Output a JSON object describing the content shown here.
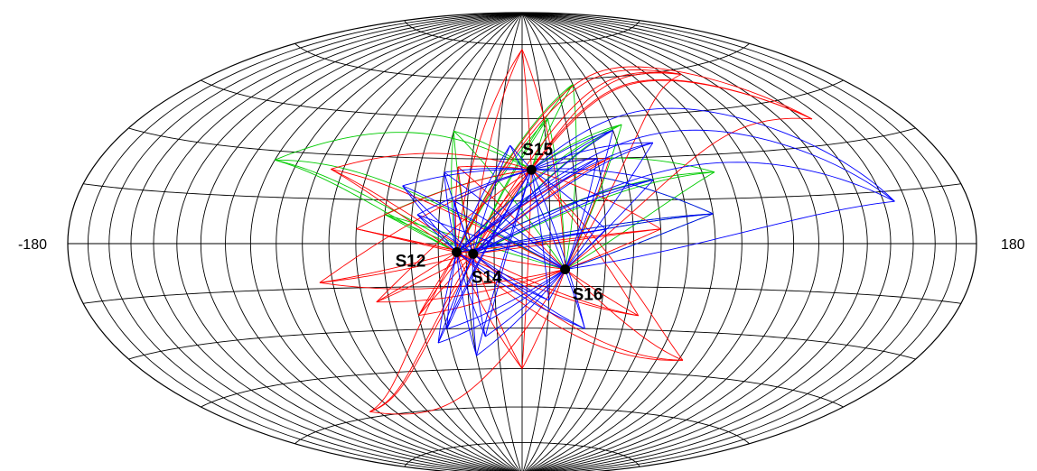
{
  "projection": "Hammer-Aitoff (lunar near side, longitude/latitude graticule)",
  "graticule": {
    "longitude_step_deg": 10,
    "latitude_step_deg": 15
  },
  "axis_labels": {
    "left": "-180",
    "right": "180"
  },
  "colors": {
    "green": "#00cc00",
    "red": "#ff0000",
    "blue": "#0000ff",
    "station": "#000000"
  },
  "stations": [
    {
      "label": "S12",
      "lon": -23.4,
      "lat": -3.0
    },
    {
      "label": "S14",
      "lon": -17.5,
      "lat": -3.6
    },
    {
      "label": "S15",
      "lon": 3.6,
      "lat": 26.1
    },
    {
      "label": "S16",
      "lon": 15.5,
      "lat": -9.0
    }
  ],
  "ray_groups": [
    {
      "color": "green",
      "events": [
        {
          "lon": -100,
          "lat": 27
        },
        {
          "lon": 30,
          "lat": 58
        },
        {
          "lon": 75,
          "lat": 24
        },
        {
          "lon": 70,
          "lat": 10
        },
        {
          "lon": -50,
          "lat": 10
        },
        {
          "lon": -30,
          "lat": 40
        },
        {
          "lon": 45,
          "lat": 42
        },
        {
          "lon": 12,
          "lat": 45
        }
      ]
    },
    {
      "color": "red",
      "events": [
        {
          "lon": 0,
          "lat": 73
        },
        {
          "lon": 135,
          "lat": 38
        },
        {
          "lon": 100,
          "lat": 58
        },
        {
          "lon": -75,
          "lat": 25
        },
        {
          "lon": -95,
          "lat": -58
        },
        {
          "lon": 72,
          "lat": -40
        },
        {
          "lon": -75,
          "lat": -13
        },
        {
          "lon": -55,
          "lat": -20
        },
        {
          "lon": -60,
          "lat": 5
        },
        {
          "lon": 45,
          "lat": -25
        },
        {
          "lon": 0,
          "lat": -45
        },
        {
          "lon": -25,
          "lat": 27
        },
        {
          "lon": 35,
          "lat": 30
        },
        {
          "lon": -40,
          "lat": -25
        },
        {
          "lon": 50,
          "lat": 5
        }
      ]
    },
    {
      "color": "blue",
      "events": [
        {
          "lon": 55,
          "lat": 35
        },
        {
          "lon": 50,
          "lat": 22
        },
        {
          "lon": 145,
          "lat": 12
        },
        {
          "lon": -30,
          "lat": 25
        },
        {
          "lon": -45,
          "lat": 20
        },
        {
          "lon": -38,
          "lat": 10
        },
        {
          "lon": -35,
          "lat": -35
        },
        {
          "lon": -30,
          "lat": -30
        },
        {
          "lon": -15,
          "lat": -33
        },
        {
          "lon": -20,
          "lat": -40
        },
        {
          "lon": 10,
          "lat": -20
        },
        {
          "lon": 40,
          "lat": 40
        },
        {
          "lon": 30,
          "lat": 30
        },
        {
          "lon": 70,
          "lat": 10
        },
        {
          "lon": -25,
          "lat": 15
        },
        {
          "lon": 30,
          "lat": 5
        },
        {
          "lon": -5,
          "lat": 35
        },
        {
          "lon": 25,
          "lat": -30
        }
      ]
    }
  ]
}
